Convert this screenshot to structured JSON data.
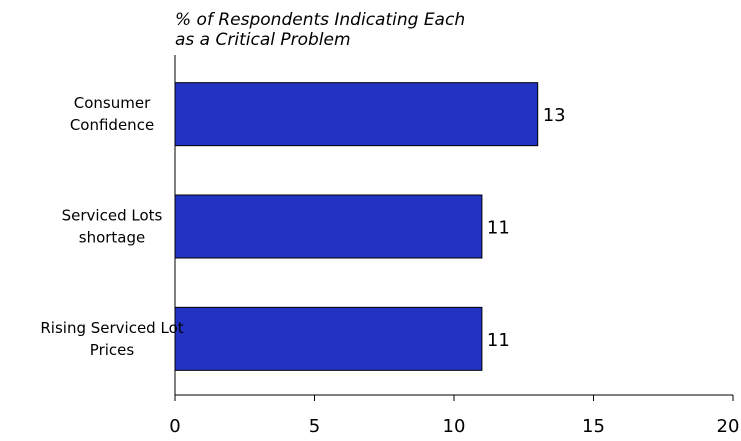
{
  "chart_data": {
    "type": "bar",
    "orientation": "horizontal",
    "title": [
      "% of Respondents Indicating Each",
      "as a Critical Problem"
    ],
    "categories": [
      [
        "Consumer",
        "Confidence"
      ],
      [
        "Serviced Lots",
        "shortage"
      ],
      [
        "Rising Serviced Lot",
        "Prices"
      ]
    ],
    "values": [
      13,
      11,
      11
    ],
    "data_labels": [
      "13",
      "11",
      "11"
    ],
    "xlim": [
      0,
      20
    ],
    "xticks": [
      "0",
      "5",
      "10",
      "15",
      "20"
    ],
    "xlabel": "",
    "ylabel": "",
    "grid": false,
    "bar_color": "#2233c3"
  }
}
